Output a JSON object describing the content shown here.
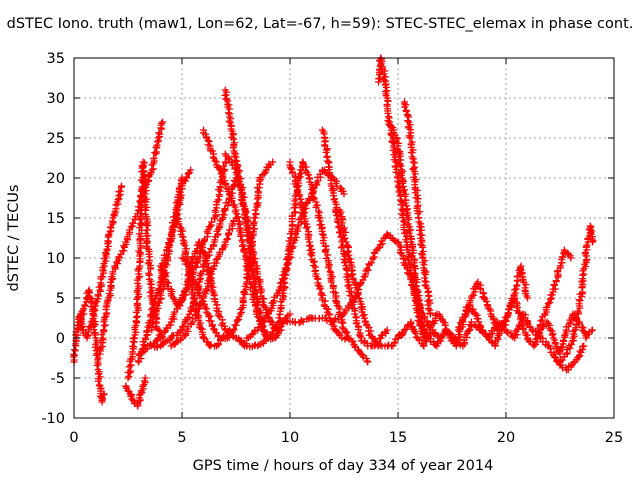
{
  "chart_data": {
    "type": "scatter",
    "title": "dSTEC Iono. truth (maw1, Lon=62, Lat=-67, h=59): STEC-STEC_elemax in phase cont.",
    "xlabel": "GPS time / hours of day 334 of year 2014",
    "ylabel": "dSTEC  / TECUs",
    "xlim": [
      0,
      25
    ],
    "ylim": [
      -10,
      35
    ],
    "x_ticks": [
      0,
      5,
      10,
      15,
      20,
      25
    ],
    "y_ticks": [
      -10,
      -5,
      0,
      5,
      10,
      15,
      20,
      25,
      30,
      35
    ],
    "x_tick_labels": [
      "0",
      "5",
      "10",
      "15",
      "20",
      "25"
    ],
    "y_tick_labels": [
      "-10",
      "-5",
      "0",
      "5",
      "10",
      "15",
      "20",
      "25",
      "30",
      "35"
    ],
    "grid": true,
    "legend": "none",
    "marker": "+",
    "color": "#ff0000",
    "series": [
      {
        "x": [
          0.0,
          0.1,
          0.2,
          0.3,
          0.4,
          0.6,
          0.8,
          1.0,
          1.2,
          1.4,
          1.6,
          1.8,
          2.0,
          2.2
        ],
        "y": [
          -3,
          0,
          2,
          3,
          1,
          0,
          2,
          4,
          6,
          9,
          12,
          15,
          17,
          19
        ]
      },
      {
        "x": [
          0.3,
          0.5,
          0.7,
          0.9,
          1.0,
          1.1,
          1.2,
          1.3,
          1.4
        ],
        "y": [
          2,
          4,
          6,
          3,
          0,
          -3,
          -6,
          -8,
          -7
        ]
      },
      {
        "x": [
          1.2,
          1.5,
          1.8,
          2.1,
          2.4,
          2.7,
          3.0,
          3.3,
          3.6,
          3.9,
          4.1
        ],
        "y": [
          -2,
          3,
          8,
          10,
          12,
          14,
          16,
          19,
          21,
          25,
          27
        ]
      },
      {
        "x": [
          2.4,
          2.6,
          2.8,
          2.95,
          3.1,
          3.3
        ],
        "y": [
          -6,
          -7,
          -8,
          -8.5,
          -7,
          -5
        ]
      },
      {
        "x": [
          2.5,
          2.7,
          2.9,
          3.0,
          3.1,
          3.2,
          3.3,
          3.4,
          3.6,
          3.8,
          4.0
        ],
        "y": [
          -5,
          -2,
          2,
          8,
          15,
          22,
          18,
          12,
          5,
          2,
          0
        ]
      },
      {
        "x": [
          3.0,
          3.3,
          3.6,
          3.9,
          4.2,
          4.5,
          4.8,
          5.0,
          5.2,
          5.4
        ],
        "y": [
          -3,
          0,
          3,
          6,
          10,
          13,
          16,
          19,
          20,
          21
        ]
      },
      {
        "x": [
          3.6,
          3.8,
          4.0,
          4.2,
          4.4,
          4.6,
          4.8,
          5.0
        ],
        "y": [
          1,
          3,
          5,
          8,
          11,
          14,
          17,
          20
        ]
      },
      {
        "x": [
          3.5,
          4.0,
          4.5,
          5.0,
          5.5,
          6.0,
          6.5,
          7.0,
          7.5
        ],
        "y": [
          -1,
          -1,
          0,
          1,
          4,
          9,
          12,
          16,
          20
        ]
      },
      {
        "x": [
          3.0,
          3.5,
          4.0,
          4.5,
          5.0,
          5.5,
          6.0,
          6.5,
          7.0
        ],
        "y": [
          -2,
          -1,
          0,
          2,
          5,
          8,
          12,
          15,
          22
        ]
      },
      {
        "x": [
          4.5,
          5.0,
          5.5,
          6.0,
          6.5,
          7.0,
          7.5
        ],
        "y": [
          -1,
          0,
          2,
          5,
          9,
          12,
          15
        ]
      },
      {
        "x": [
          4.0,
          4.3,
          4.6,
          4.9,
          5.2,
          5.5,
          5.8,
          6.1,
          6.4,
          6.7,
          7.0,
          7.5,
          8.0
        ],
        "y": [
          9,
          7,
          5,
          4,
          6,
          10,
          12,
          10,
          6,
          3,
          1,
          0,
          -1
        ]
      },
      {
        "x": [
          5.0,
          5.3,
          5.6,
          5.9,
          6.2,
          6.5,
          6.8,
          7.1,
          7.4,
          7.7,
          8.0,
          8.3,
          8.6,
          8.9,
          9.2
        ],
        "y": [
          10,
          9,
          7,
          5,
          3,
          1,
          0,
          0,
          1,
          3,
          7,
          13,
          20,
          21,
          22
        ]
      },
      {
        "x": [
          4.8,
          5.1,
          5.4,
          5.7,
          6.0,
          6.3,
          6.6,
          6.9,
          7.2
        ],
        "y": [
          15,
          12,
          7,
          3,
          0,
          -1,
          -1,
          0,
          1
        ]
      },
      {
        "x": [
          6.0,
          6.3,
          6.6,
          6.9,
          7.2,
          7.5,
          7.8,
          8.1,
          8.4,
          8.7,
          9.0,
          9.3,
          9.6
        ],
        "y": [
          26,
          24,
          22,
          20,
          18,
          16,
          12,
          8,
          4,
          1,
          0,
          0,
          1
        ]
      },
      {
        "x": [
          7.0,
          7.3,
          7.6,
          7.9,
          8.2,
          8.5,
          8.8,
          9.1,
          9.4,
          9.7,
          10.0
        ],
        "y": [
          23,
          22,
          20,
          16,
          12,
          8,
          4,
          2,
          1,
          2,
          3
        ]
      },
      {
        "x": [
          7.0,
          7.2,
          7.4,
          7.6,
          7.8,
          8.0,
          8.2,
          8.4,
          8.6,
          8.8,
          9.0
        ],
        "y": [
          31,
          28,
          24,
          21,
          18,
          14,
          10,
          6,
          3,
          1,
          0
        ]
      },
      {
        "x": [
          7.5,
          8.0,
          8.5,
          9.0,
          9.5,
          10.0,
          10.5,
          11.0,
          11.5,
          12.0
        ],
        "y": [
          0,
          -1,
          -1,
          0,
          2,
          2,
          2,
          2.5,
          2.5,
          2
        ]
      },
      {
        "x": [
          8.0,
          8.5,
          9.0,
          9.5,
          10.0,
          10.5,
          11.0,
          11.5,
          12.0,
          12.5
        ],
        "y": [
          0,
          1,
          3,
          6,
          10,
          15,
          18,
          21,
          20,
          18
        ]
      },
      {
        "x": [
          9.5,
          9.7,
          9.9,
          10.1,
          10.3,
          10.6,
          10.9,
          11.2,
          11.5,
          11.8,
          12.1,
          12.4,
          12.7,
          13.0,
          13.3,
          13.6
        ],
        "y": [
          2,
          6,
          10,
          14,
          18,
          22,
          20,
          17,
          13,
          9,
          5,
          2,
          0,
          -1,
          -2,
          -3
        ]
      },
      {
        "x": [
          10.0,
          10.3,
          10.6,
          10.9,
          11.2,
          11.5,
          11.8,
          12.1,
          12.4,
          12.7
        ],
        "y": [
          22,
          19,
          16,
          12,
          8,
          5,
          3,
          1,
          0,
          0
        ]
      },
      {
        "x": [
          11.5,
          11.8,
          12.1,
          12.4,
          12.7,
          13.0,
          13.3,
          13.6,
          13.9,
          14.2,
          14.5
        ],
        "y": [
          26,
          22,
          17,
          12,
          7,
          3,
          0,
          -1,
          -1,
          0,
          1
        ]
      },
      {
        "x": [
          12.3,
          12.6,
          12.9,
          13.2,
          13.5,
          13.8,
          14.1,
          14.4,
          14.7,
          15.0,
          15.3
        ],
        "y": [
          16,
          12,
          8,
          5,
          2,
          0,
          -1,
          -1,
          -1,
          0,
          1
        ]
      },
      {
        "x": [
          12.0,
          12.5,
          13.0,
          13.5,
          14.0,
          14.5,
          15.0,
          15.5,
          16.0,
          16.5,
          17.0
        ],
        "y": [
          2,
          3,
          5,
          8,
          11,
          13,
          12,
          8,
          4,
          1,
          0
        ]
      },
      {
        "x": [
          14.1,
          14.2,
          14.35,
          14.5,
          14.6,
          14.8,
          15.0,
          15.2,
          15.4,
          15.6,
          15.8,
          16.0,
          16.2
        ],
        "y": [
          32,
          35,
          33,
          30,
          27,
          24,
          20,
          16,
          12,
          8,
          5,
          2,
          0
        ]
      },
      {
        "x": [
          14.6,
          14.8,
          15.0,
          15.2,
          15.4,
          15.6,
          15.8,
          16.0,
          16.2,
          16.4
        ],
        "y": [
          27,
          26,
          24,
          20,
          16,
          12,
          8,
          4,
          1,
          0
        ]
      },
      {
        "x": [
          15.3,
          15.5,
          15.7,
          15.9,
          16.1,
          16.3,
          16.5
        ],
        "y": [
          29.5,
          27,
          22,
          17,
          12,
          7,
          3
        ]
      },
      {
        "x": [
          15.0,
          15.3,
          15.6,
          15.9,
          16.2,
          16.5,
          16.8,
          17.1,
          17.4,
          17.7,
          18.0,
          18.3,
          18.6,
          18.9,
          19.2,
          19.5,
          19.8,
          20.1,
          20.4,
          20.7,
          21.0,
          21.3,
          21.6,
          21.9,
          22.2,
          22.5,
          22.8,
          23.1,
          23.4,
          23.7,
          24.0
        ],
        "y": [
          0,
          1,
          2,
          0,
          -1,
          1,
          3,
          2,
          0,
          -1,
          2,
          4,
          3,
          1,
          0,
          -1,
          1,
          3,
          5,
          2,
          0,
          -1,
          1,
          2,
          0,
          -2,
          1,
          3,
          2,
          0,
          1
        ]
      },
      {
        "x": [
          16.0,
          16.4,
          16.8,
          17.2,
          17.6,
          18.0,
          18.4,
          18.8,
          19.2,
          19.6,
          20.0,
          20.4,
          20.8,
          21.2,
          21.6,
          22.0,
          22.4,
          22.8,
          23.2,
          23.6
        ],
        "y": [
          2,
          0,
          -1,
          1,
          0,
          -1,
          2,
          1,
          0,
          2,
          1,
          0,
          3,
          1,
          0,
          -1,
          -3,
          -4,
          -3,
          -1
        ]
      },
      {
        "x": [
          17.8,
          18.1,
          18.4,
          18.7,
          19.0,
          19.3,
          19.6
        ],
        "y": [
          1,
          3,
          5,
          7,
          5,
          3,
          1
        ]
      },
      {
        "x": [
          19.8,
          20.1,
          20.4,
          20.7,
          21.0
        ],
        "y": [
          1,
          3,
          6,
          9,
          5
        ]
      },
      {
        "x": [
          21.5,
          21.8,
          22.1,
          22.4,
          22.7,
          23.0
        ],
        "y": [
          1,
          3,
          5,
          8,
          11,
          10
        ]
      },
      {
        "x": [
          22.5,
          22.8,
          23.1,
          23.4,
          23.6,
          23.8,
          23.9,
          24.0
        ],
        "y": [
          -3,
          -2,
          0,
          4,
          8,
          12,
          14,
          12
        ]
      }
    ]
  }
}
